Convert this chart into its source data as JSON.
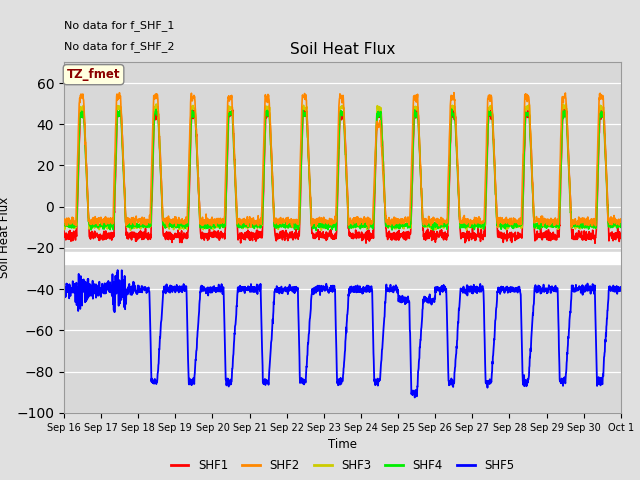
{
  "title": "Soil Heat Flux",
  "ylabel": "Soil Heat Flux",
  "xlabel": "Time",
  "annotation_lines": [
    "No data for f_SHF_1",
    "No data for f_SHF_2"
  ],
  "tz_label": "TZ_fmet",
  "ylim": [
    -100,
    70
  ],
  "yticks": [
    -100,
    -80,
    -60,
    -40,
    -20,
    0,
    20,
    40,
    60
  ],
  "fig_bg_color": "#e0e0e0",
  "plot_bg_color": "#d8d8d8",
  "series_colors": {
    "SHF1": "#ff0000",
    "SHF2": "#ff8800",
    "SHF3": "#cccc00",
    "SHF4": "#00ee00",
    "SHF5": "#0000ff"
  },
  "n_days": 15
}
